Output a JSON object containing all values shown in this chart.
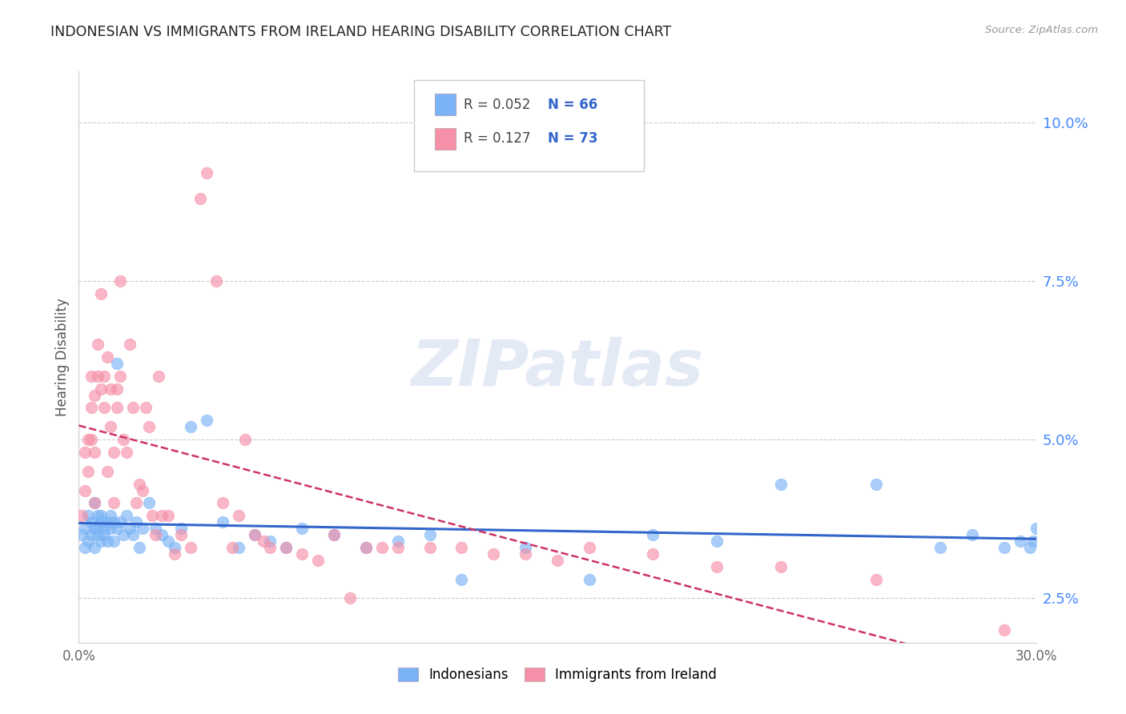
{
  "title": "INDONESIAN VS IMMIGRANTS FROM IRELAND HEARING DISABILITY CORRELATION CHART",
  "source_text": "Source: ZipAtlas.com",
  "ylabel": "Hearing Disability",
  "xlim": [
    0.0,
    0.3
  ],
  "ylim": [
    0.018,
    0.108
  ],
  "yticks": [
    0.025,
    0.05,
    0.075,
    0.1
  ],
  "ytick_labels": [
    "2.5%",
    "5.0%",
    "7.5%",
    "10.0%"
  ],
  "gridline_color": "#cccccc",
  "background_color": "#ffffff",
  "blue_color": "#7ab3f5",
  "pink_color": "#f590a8",
  "blue_line_color": "#3366cc",
  "pink_line_color": "#cc3366",
  "legend_R_blue": "0.052",
  "legend_N_blue": "66",
  "legend_R_pink": "0.127",
  "legend_N_pink": "73",
  "legend_label_blue": "Indonesians",
  "legend_label_pink": "Immigrants from Ireland",
  "watermark": "ZIPatlas",
  "blue_x": [
    0.001,
    0.002,
    0.002,
    0.003,
    0.003,
    0.004,
    0.004,
    0.005,
    0.005,
    0.005,
    0.006,
    0.006,
    0.006,
    0.007,
    0.007,
    0.007,
    0.008,
    0.008,
    0.009,
    0.009,
    0.01,
    0.01,
    0.011,
    0.011,
    0.012,
    0.012,
    0.013,
    0.014,
    0.015,
    0.016,
    0.017,
    0.018,
    0.019,
    0.02,
    0.022,
    0.024,
    0.026,
    0.028,
    0.03,
    0.032,
    0.035,
    0.04,
    0.045,
    0.05,
    0.055,
    0.06,
    0.065,
    0.07,
    0.08,
    0.09,
    0.1,
    0.11,
    0.12,
    0.14,
    0.16,
    0.18,
    0.2,
    0.22,
    0.25,
    0.27,
    0.28,
    0.29,
    0.295,
    0.298,
    0.299,
    0.3
  ],
  "blue_y": [
    0.035,
    0.033,
    0.036,
    0.034,
    0.038,
    0.037,
    0.035,
    0.036,
    0.033,
    0.04,
    0.038,
    0.035,
    0.036,
    0.037,
    0.034,
    0.038,
    0.036,
    0.035,
    0.037,
    0.034,
    0.038,
    0.036,
    0.037,
    0.034,
    0.036,
    0.062,
    0.037,
    0.035,
    0.038,
    0.036,
    0.035,
    0.037,
    0.033,
    0.036,
    0.04,
    0.036,
    0.035,
    0.034,
    0.033,
    0.036,
    0.052,
    0.053,
    0.037,
    0.033,
    0.035,
    0.034,
    0.033,
    0.036,
    0.035,
    0.033,
    0.034,
    0.035,
    0.028,
    0.033,
    0.028,
    0.035,
    0.034,
    0.043,
    0.043,
    0.033,
    0.035,
    0.033,
    0.034,
    0.033,
    0.034,
    0.036
  ],
  "pink_x": [
    0.001,
    0.002,
    0.002,
    0.003,
    0.003,
    0.004,
    0.004,
    0.004,
    0.005,
    0.005,
    0.005,
    0.006,
    0.006,
    0.007,
    0.007,
    0.008,
    0.008,
    0.009,
    0.009,
    0.01,
    0.01,
    0.011,
    0.011,
    0.012,
    0.012,
    0.013,
    0.013,
    0.014,
    0.015,
    0.016,
    0.017,
    0.018,
    0.019,
    0.02,
    0.021,
    0.022,
    0.023,
    0.024,
    0.025,
    0.026,
    0.028,
    0.03,
    0.032,
    0.035,
    0.038,
    0.04,
    0.043,
    0.045,
    0.048,
    0.05,
    0.052,
    0.055,
    0.058,
    0.06,
    0.065,
    0.07,
    0.075,
    0.08,
    0.085,
    0.09,
    0.095,
    0.1,
    0.11,
    0.12,
    0.13,
    0.14,
    0.15,
    0.16,
    0.18,
    0.2,
    0.22,
    0.25,
    0.29
  ],
  "pink_y": [
    0.038,
    0.042,
    0.048,
    0.05,
    0.045,
    0.06,
    0.055,
    0.05,
    0.057,
    0.048,
    0.04,
    0.065,
    0.06,
    0.058,
    0.073,
    0.06,
    0.055,
    0.045,
    0.063,
    0.058,
    0.052,
    0.048,
    0.04,
    0.055,
    0.058,
    0.06,
    0.075,
    0.05,
    0.048,
    0.065,
    0.055,
    0.04,
    0.043,
    0.042,
    0.055,
    0.052,
    0.038,
    0.035,
    0.06,
    0.038,
    0.038,
    0.032,
    0.035,
    0.033,
    0.088,
    0.092,
    0.075,
    0.04,
    0.033,
    0.038,
    0.05,
    0.035,
    0.034,
    0.033,
    0.033,
    0.032,
    0.031,
    0.035,
    0.025,
    0.033,
    0.033,
    0.033,
    0.033,
    0.033,
    0.032,
    0.032,
    0.031,
    0.033,
    0.032,
    0.03,
    0.03,
    0.028,
    0.02
  ]
}
